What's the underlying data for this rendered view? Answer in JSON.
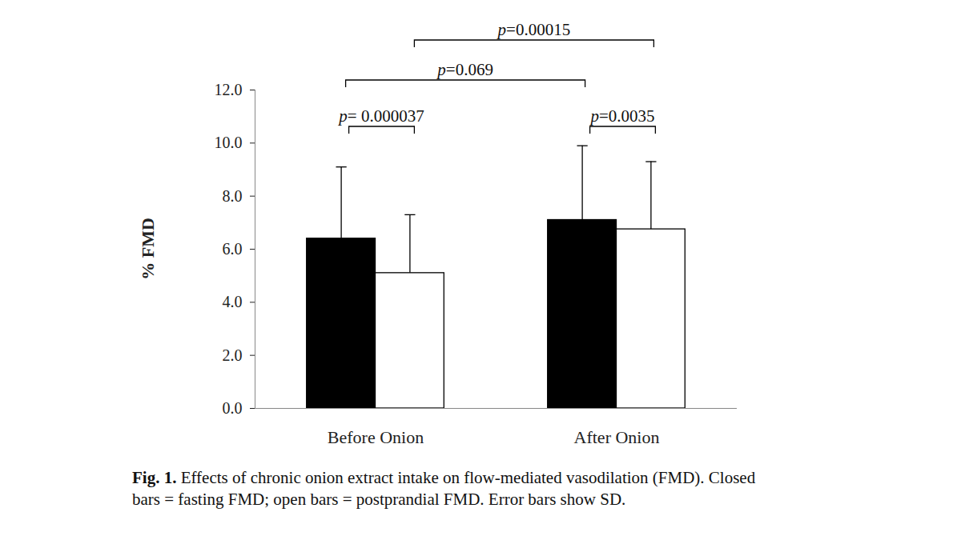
{
  "chart_data": {
    "type": "bar",
    "ylabel": "% FMD",
    "caption_label": "Fig. 1.",
    "caption": "Effects of chronic onion extract intake on flow-mediated vasodilation (FMD). Closed bars = fasting FMD; open bars = postprandial FMD. Error bars show SD.",
    "categories": [
      "Before Onion",
      "After Onion"
    ],
    "series": [
      {
        "color": "#000000",
        "values": [
          6.4,
          7.1
        ],
        "error": [
          2.7,
          2.8
        ]
      },
      {
        "color": "#ffffff",
        "values": [
          5.1,
          6.75
        ],
        "error": [
          2.2,
          2.55
        ]
      }
    ],
    "ylim": [
      0,
      12
    ],
    "yticks": [
      {
        "value": 0,
        "label": "0.0"
      },
      {
        "value": 2,
        "label": "2.0"
      },
      {
        "value": 4,
        "label": "4.0"
      },
      {
        "value": 6,
        "label": "6.0"
      },
      {
        "value": 8,
        "label": "8.0"
      },
      {
        "value": 10,
        "label": "10.0"
      },
      {
        "value": 12,
        "label": "12.0"
      }
    ],
    "annotations": [
      {
        "text": "p= 0.000037",
        "bars": [
          [
            0,
            0
          ],
          [
            0,
            1
          ]
        ]
      },
      {
        "text": "p=0.0035",
        "bars": [
          [
            1,
            0
          ],
          [
            1,
            1
          ]
        ]
      },
      {
        "text": "p=0.069",
        "bars": [
          [
            0,
            0
          ],
          [
            1,
            0
          ]
        ]
      },
      {
        "text": "p=0.00015",
        "bars": [
          [
            0,
            1
          ],
          [
            1,
            1
          ]
        ]
      }
    ]
  }
}
